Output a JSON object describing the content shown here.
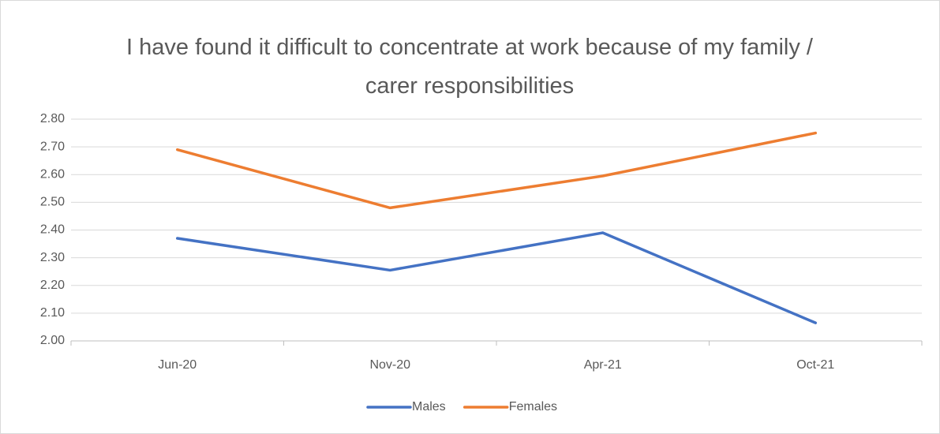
{
  "chart_data": {
    "type": "line",
    "title": "I have found it difficult to concentrate at work because of my family / carer responsibilities",
    "categories": [
      "Jun-20",
      "Nov-20",
      "Apr-21",
      "Oct-21"
    ],
    "series": [
      {
        "name": "Males",
        "color": "#4472c4",
        "values": [
          2.37,
          2.255,
          2.39,
          2.065
        ]
      },
      {
        "name": "Females",
        "color": "#ed7d31",
        "values": [
          2.69,
          2.48,
          2.595,
          2.75
        ]
      }
    ],
    "ylim": [
      2.0,
      2.8
    ],
    "yticks": [
      {
        "value": 2.0,
        "label": "2.00"
      },
      {
        "value": 2.1,
        "label": "2.10"
      },
      {
        "value": 2.2,
        "label": "2.20"
      },
      {
        "value": 2.3,
        "label": "2.30"
      },
      {
        "value": 2.4,
        "label": "2.40"
      },
      {
        "value": 2.5,
        "label": "2.50"
      },
      {
        "value": 2.6,
        "label": "2.60"
      },
      {
        "value": 2.7,
        "label": "2.70"
      },
      {
        "value": 2.8,
        "label": "2.80"
      }
    ],
    "grid": true,
    "legend": "bottom"
  }
}
